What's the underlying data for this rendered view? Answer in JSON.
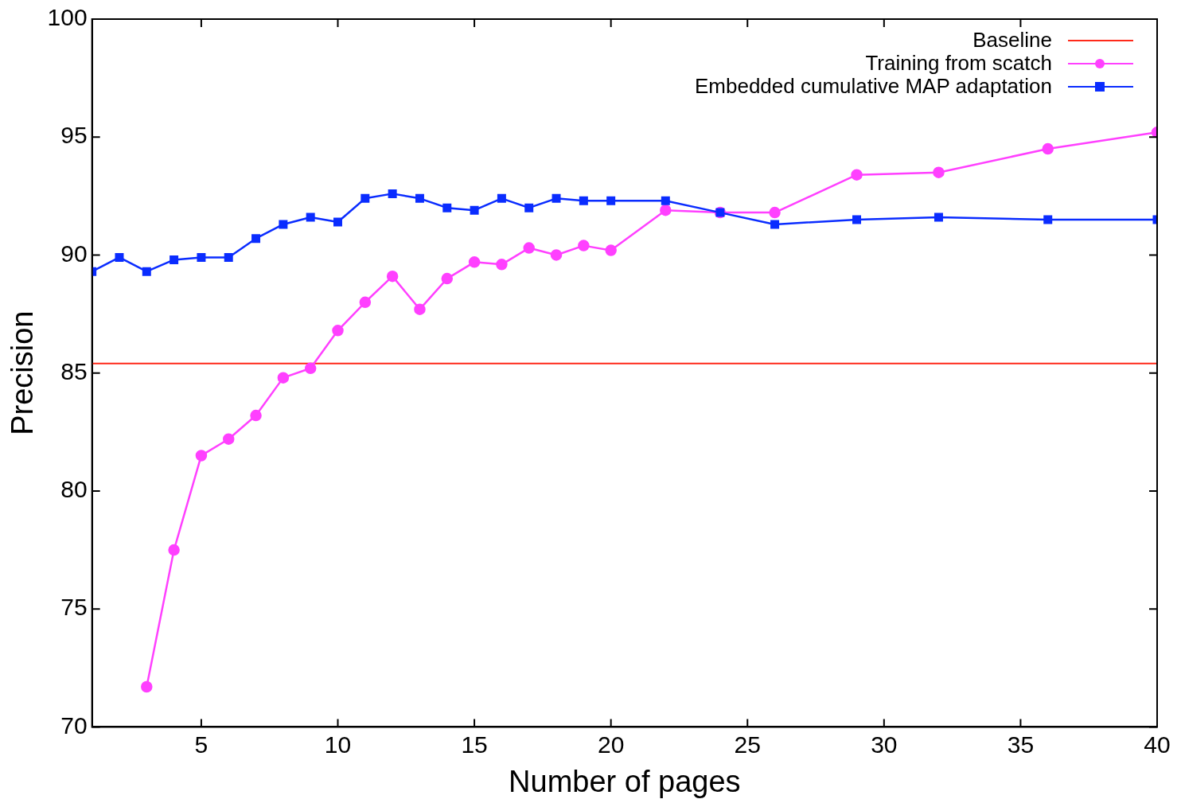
{
  "chart_data": {
    "type": "line",
    "xlabel": "Number of pages",
    "ylabel": "Precision",
    "xlim": [
      1,
      40
    ],
    "xticks": [
      5,
      10,
      15,
      20,
      25,
      30,
      35,
      40
    ],
    "ylim": [
      70,
      100
    ],
    "yticks": [
      70,
      75,
      80,
      85,
      90,
      95,
      100
    ],
    "grid": false,
    "legend": "top right",
    "line_style": "solid",
    "ref_lines": [
      {
        "axis": "y",
        "value": 85.4,
        "label": "Baseline",
        "color": "#ff2a1a"
      }
    ],
    "series": [
      {
        "name": "Training from scatch",
        "color": "#ff40ff",
        "marker": "circle",
        "x": [
          3,
          4,
          5,
          6,
          7,
          8,
          9,
          10,
          11,
          12,
          13,
          14,
          15,
          16,
          17,
          18,
          19,
          20,
          22,
          24,
          26,
          29,
          32,
          36,
          40
        ],
        "values": [
          71.7,
          77.5,
          81.5,
          82.2,
          83.2,
          84.8,
          85.2,
          86.8,
          88.0,
          89.1,
          87.7,
          89.0,
          89.7,
          89.6,
          90.3,
          90.0,
          90.4,
          90.2,
          91.9,
          91.8,
          91.8,
          93.4,
          93.5,
          94.5,
          95.2
        ]
      },
      {
        "name": "Embedded cumulative MAP adaptation",
        "color": "#0a2cff",
        "marker": "square",
        "x": [
          1,
          2,
          3,
          4,
          5,
          6,
          7,
          8,
          9,
          10,
          11,
          12,
          13,
          14,
          15,
          16,
          17,
          18,
          19,
          20,
          22,
          24,
          26,
          29,
          32,
          36,
          40
        ],
        "values": [
          89.3,
          89.9,
          89.3,
          89.8,
          89.9,
          89.9,
          90.7,
          91.3,
          91.6,
          91.4,
          92.4,
          92.6,
          92.4,
          92.0,
          91.9,
          92.4,
          92.0,
          92.4,
          92.3,
          92.3,
          92.3,
          91.8,
          91.3,
          91.5,
          91.6,
          91.5,
          91.5
        ]
      }
    ]
  }
}
